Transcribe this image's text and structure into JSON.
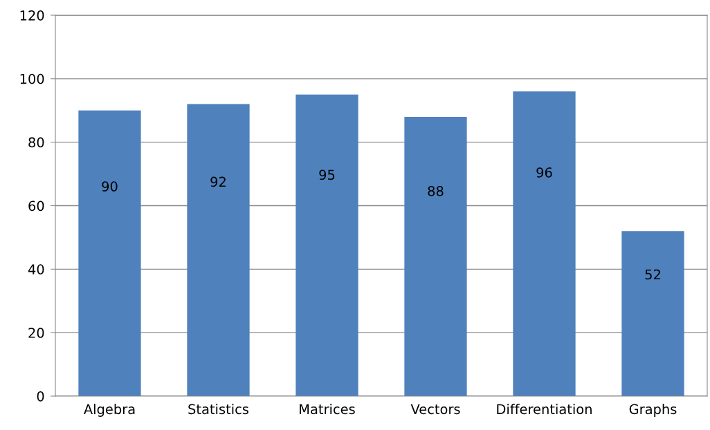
{
  "chart_data": {
    "type": "bar",
    "categories": [
      "Algebra",
      "Statistics",
      "Matrices",
      "Vectors",
      "Differentiation",
      "Graphs"
    ],
    "values": [
      90,
      92,
      95,
      88,
      96,
      52
    ],
    "color": "#4f81bd",
    "ylim": [
      0,
      120
    ],
    "yticks": [
      0,
      20,
      40,
      60,
      80,
      100,
      120
    ],
    "grid": "y",
    "data_labels": true
  }
}
